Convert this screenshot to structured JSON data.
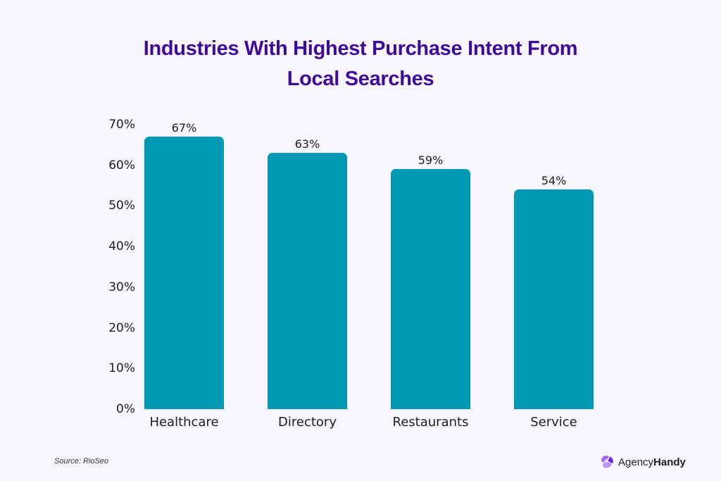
{
  "title": {
    "line1": "Industries With Highest Purchase Intent From",
    "line2": "Local Searches"
  },
  "colors": {
    "bar": "#0098b2",
    "title": "#3f0a99",
    "background": "#f7f5fe"
  },
  "source": "Source: RioSeo",
  "brand": {
    "name_regular": "Agency",
    "name_bold": "Handy"
  },
  "y_ticks": [
    "0%",
    "10%",
    "20%",
    "30%",
    "40%",
    "50%",
    "60%",
    "70%"
  ],
  "bars": [
    {
      "label": "Healthcare",
      "value": 67,
      "value_label": "67%"
    },
    {
      "label": "Directory",
      "value": 63,
      "value_label": "63%"
    },
    {
      "label": "Restaurants",
      "value": 59,
      "value_label": "59%"
    },
    {
      "label": "Service",
      "value": 54,
      "value_label": "54%"
    }
  ],
  "chart_data": {
    "type": "bar",
    "title": "Industries With Highest Purchase Intent From Local Searches",
    "categories": [
      "Healthcare",
      "Directory",
      "Restaurants",
      "Service"
    ],
    "values": [
      67,
      63,
      59,
      54
    ],
    "xlabel": "",
    "ylabel": "",
    "ylim": [
      0,
      70
    ],
    "yticks": [
      0,
      10,
      20,
      30,
      40,
      50,
      60,
      70
    ],
    "ytick_format": "percent",
    "data_labels": [
      "67%",
      "63%",
      "59%",
      "54%"
    ],
    "grid": false,
    "legend": null,
    "source": "Source: RioSeo"
  }
}
